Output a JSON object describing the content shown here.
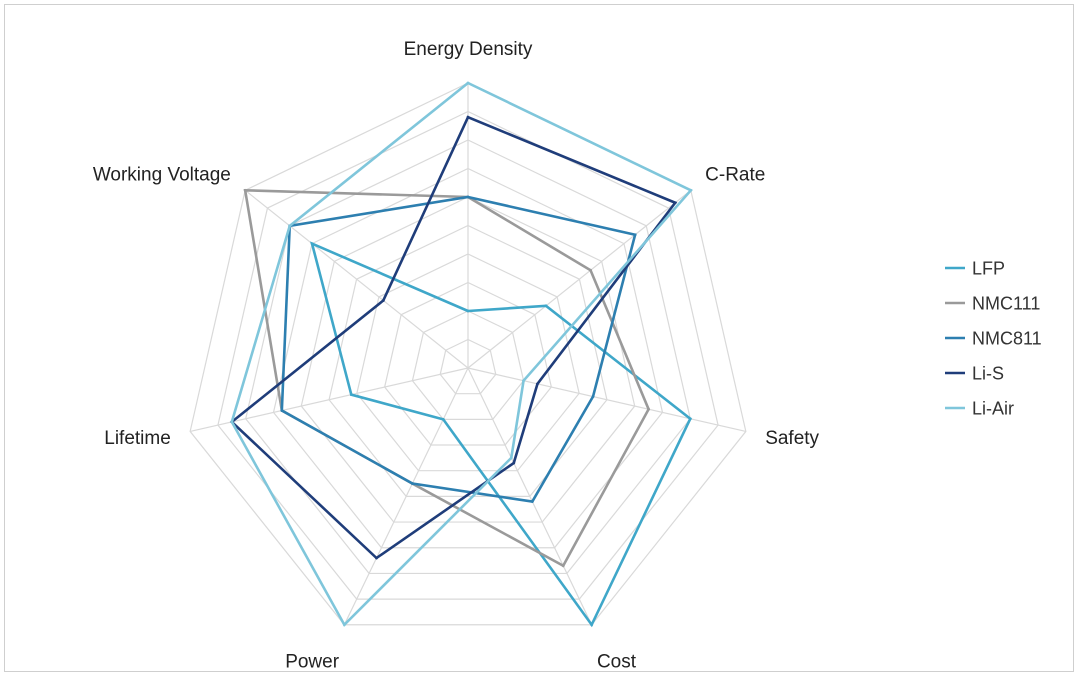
{
  "chart_data": {
    "type": "radar",
    "title": "",
    "axes": [
      "Energy Density",
      "C-Rate",
      "Safety",
      "Cost",
      "Power",
      "Lifetime",
      "Working Voltage"
    ],
    "range": [
      0,
      10
    ],
    "grid_levels": 10,
    "grid": true,
    "legend_position": "right",
    "series": [
      {
        "name": "LFP",
        "color": "#3fa7c9",
        "values": [
          2,
          3.5,
          8,
          10,
          2,
          4.2,
          7
        ]
      },
      {
        "name": "NMC111",
        "color": "#9a9a9a",
        "values": [
          6,
          5.5,
          6.5,
          7.7,
          4.5,
          6.7,
          10
        ]
      },
      {
        "name": "NMC811",
        "color": "#2d7fb0",
        "values": [
          6,
          7.5,
          4.5,
          5.2,
          4.5,
          6.7,
          8
        ]
      },
      {
        "name": "Li-S",
        "color": "#1f3d7a",
        "values": [
          8.8,
          9.3,
          2.5,
          3.7,
          7.4,
          8.5,
          3.8
        ]
      },
      {
        "name": "Li-Air",
        "color": "#7fc6db",
        "values": [
          10,
          10,
          2,
          3.5,
          10,
          8.5,
          8
        ]
      }
    ]
  }
}
